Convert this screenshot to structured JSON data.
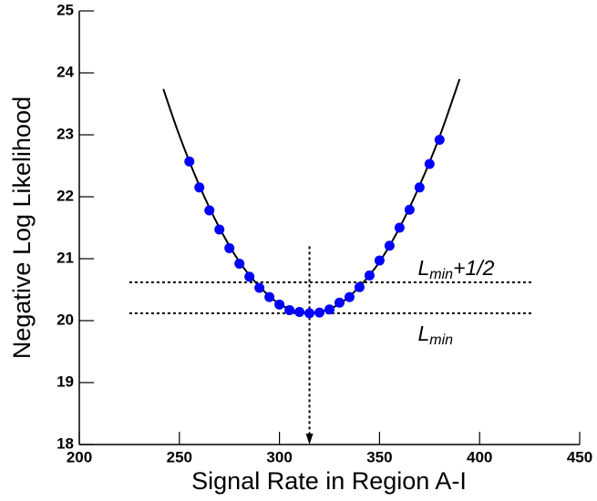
{
  "chart_data": {
    "type": "scatter",
    "x_label": "Signal Rate in Region A-I",
    "y_label": "Negative Log Likelihood",
    "xlim": [
      200,
      450
    ],
    "xticks": [
      200,
      250,
      300,
      350,
      400,
      450
    ],
    "ylim": [
      18,
      25
    ],
    "yticks": [
      18,
      19,
      20,
      21,
      22,
      23,
      24,
      25
    ],
    "series": [
      {
        "color": "#0000ff",
        "x": [
          255,
          260,
          265,
          270,
          275,
          280,
          285,
          290,
          295,
          300,
          305,
          310,
          315,
          320,
          325,
          330,
          335,
          340,
          345,
          350,
          355,
          360,
          365,
          370,
          375,
          380
        ],
        "values": [
          22.57,
          22.15,
          21.78,
          21.47,
          21.17,
          20.92,
          20.71,
          20.53,
          20.38,
          20.26,
          20.17,
          20.14,
          20.12,
          20.13,
          20.18,
          20.29,
          20.38,
          20.54,
          20.73,
          20.97,
          21.21,
          21.5,
          21.79,
          22.15,
          22.53,
          22.92
        ]
      }
    ],
    "curve": {
      "color": "#000000",
      "x": [
        242,
        250,
        260,
        270,
        280,
        290,
        300,
        310,
        320,
        330,
        340,
        350,
        360,
        370,
        380,
        390
      ],
      "values": [
        23.74,
        22.99,
        22.18,
        21.5,
        20.95,
        20.55,
        20.27,
        20.14,
        20.14,
        20.27,
        20.55,
        20.95,
        21.5,
        22.18,
        22.97,
        23.9
      ]
    },
    "reference_lines": [
      {
        "y": 20.62,
        "xrange": [
          225,
          427
        ],
        "label": "L",
        "label_sub": "min",
        "label_suffix": "+1/2"
      },
      {
        "y": 20.12,
        "xrange": [
          225,
          427
        ],
        "label": "L",
        "label_sub": "min"
      }
    ],
    "marker_line": {
      "x": 315,
      "yrange": [
        18,
        21.2
      ]
    }
  }
}
